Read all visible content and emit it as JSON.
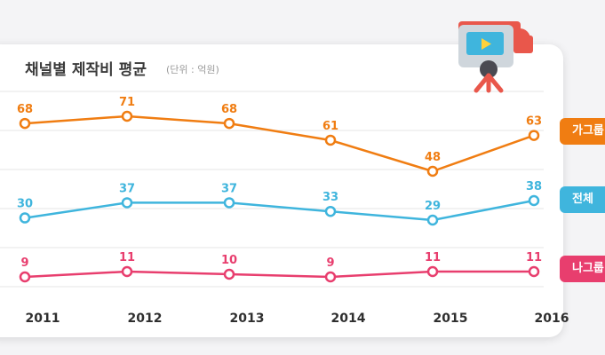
{
  "title": "채널별 제작비 평균",
  "subtitle": "(단위 : 억원)",
  "chart_data": {
    "type": "line",
    "title": "채널별 제작비 평균",
    "subtitle": "(단위 : 억원)",
    "categories": [
      "2011",
      "2012",
      "2013",
      "2014",
      "2015",
      "2016"
    ],
    "series": [
      {
        "name": "가그룹",
        "color": "#f07d12",
        "values": [
          68,
          71,
          68,
          61,
          48,
          63
        ]
      },
      {
        "name": "전체",
        "color": "#3fb5dd",
        "values": [
          30,
          37,
          37,
          33,
          29,
          38
        ]
      },
      {
        "name": "나그룹",
        "color": "#e83e6e",
        "values": [
          9,
          11,
          10,
          9,
          11,
          11
        ]
      }
    ],
    "grid": true,
    "legend": "right"
  },
  "legend_labels": {
    "game": "가그룹",
    "all": "전체",
    "solo": "나그룹"
  },
  "icons": {
    "camera": "video-camera-icon"
  }
}
